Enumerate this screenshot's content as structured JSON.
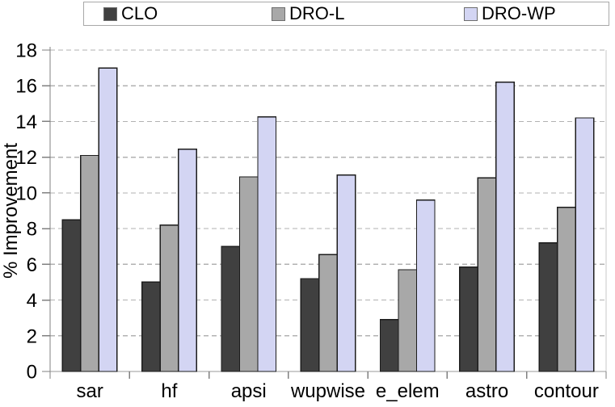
{
  "chart_data": {
    "type": "bar",
    "title": "",
    "xlabel": "",
    "ylabel": "% Improvement",
    "ylim": [
      0,
      18
    ],
    "ytick_step": 2,
    "grid": "horizontal dashed every 2",
    "legend_position": "top",
    "categories": [
      "sar",
      "hf",
      "apsi",
      "wupwise",
      "e_elem",
      "astro",
      "contour"
    ],
    "series": [
      {
        "name": "CLO",
        "color": "#404040",
        "values": [
          8.5,
          5.0,
          7.0,
          5.2,
          2.9,
          5.85,
          7.2
        ]
      },
      {
        "name": "DRO-L",
        "color": "#a8a8a8",
        "values": [
          12.1,
          8.2,
          10.9,
          6.55,
          5.7,
          10.85,
          9.2
        ]
      },
      {
        "name": "DRO-WP",
        "color": "#d3d5f3",
        "values": [
          17.0,
          12.45,
          14.25,
          11.0,
          9.6,
          16.2,
          14.2
        ]
      }
    ]
  },
  "colors": {
    "background": "#ffffff",
    "text": "#000000",
    "axis": "#808080",
    "bottom_axis": "#9a9a9a",
    "gridline": "#b2b2b2",
    "plot_right_border": "#c8c8c8",
    "bar_border": "#1d1d1d",
    "legend_border": "#a8a8a8",
    "tick": "#808080"
  }
}
